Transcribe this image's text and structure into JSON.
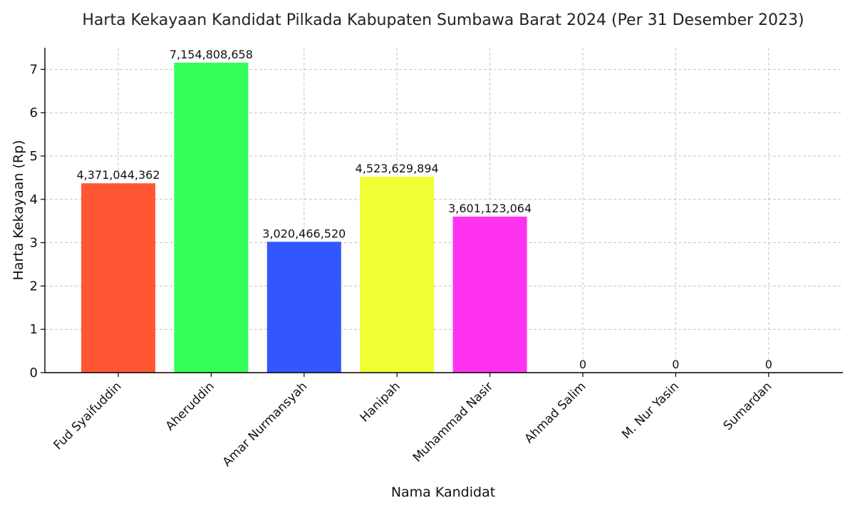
{
  "chart_data": {
    "type": "bar",
    "title": "Harta Kekayaan Kandidat Pilkada Kabupaten Sumbawa Barat 2024 (Per 31 Desember 2023)",
    "xlabel": "Nama Kandidat",
    "ylabel": "Harta Kekayaan (Rp)",
    "scale_label": "1e9",
    "categories": [
      "Fud Syaifuddin",
      "Aheruddin",
      "Amar Nurmansyah",
      "Hanipah",
      "Muhammad Nasir",
      "Ahmad Salim",
      "M. Nur Yasin",
      "Sumardan"
    ],
    "values": [
      4371044362,
      7154808658,
      3020466520,
      4523629894,
      3601123064,
      0,
      0,
      0
    ],
    "value_labels": [
      "4,371,044,362",
      "7,154,808,658",
      "3,020,466,520",
      "4,523,629,894",
      "3,601,123,064",
      "0",
      "0",
      "0"
    ],
    "colors": [
      "#FF5733",
      "#33FF57",
      "#3357FF",
      "#EFFF33",
      "#FF33EF",
      "#FF5733",
      "#33FF57",
      "#3357FF"
    ],
    "ylim": [
      0,
      7500000000
    ],
    "yticks": [
      0,
      1000000000,
      2000000000,
      3000000000,
      4000000000,
      5000000000,
      6000000000,
      7000000000
    ],
    "ytick_labels": [
      "0",
      "1",
      "2",
      "3",
      "4",
      "5",
      "6",
      "7"
    ],
    "grid": true
  }
}
